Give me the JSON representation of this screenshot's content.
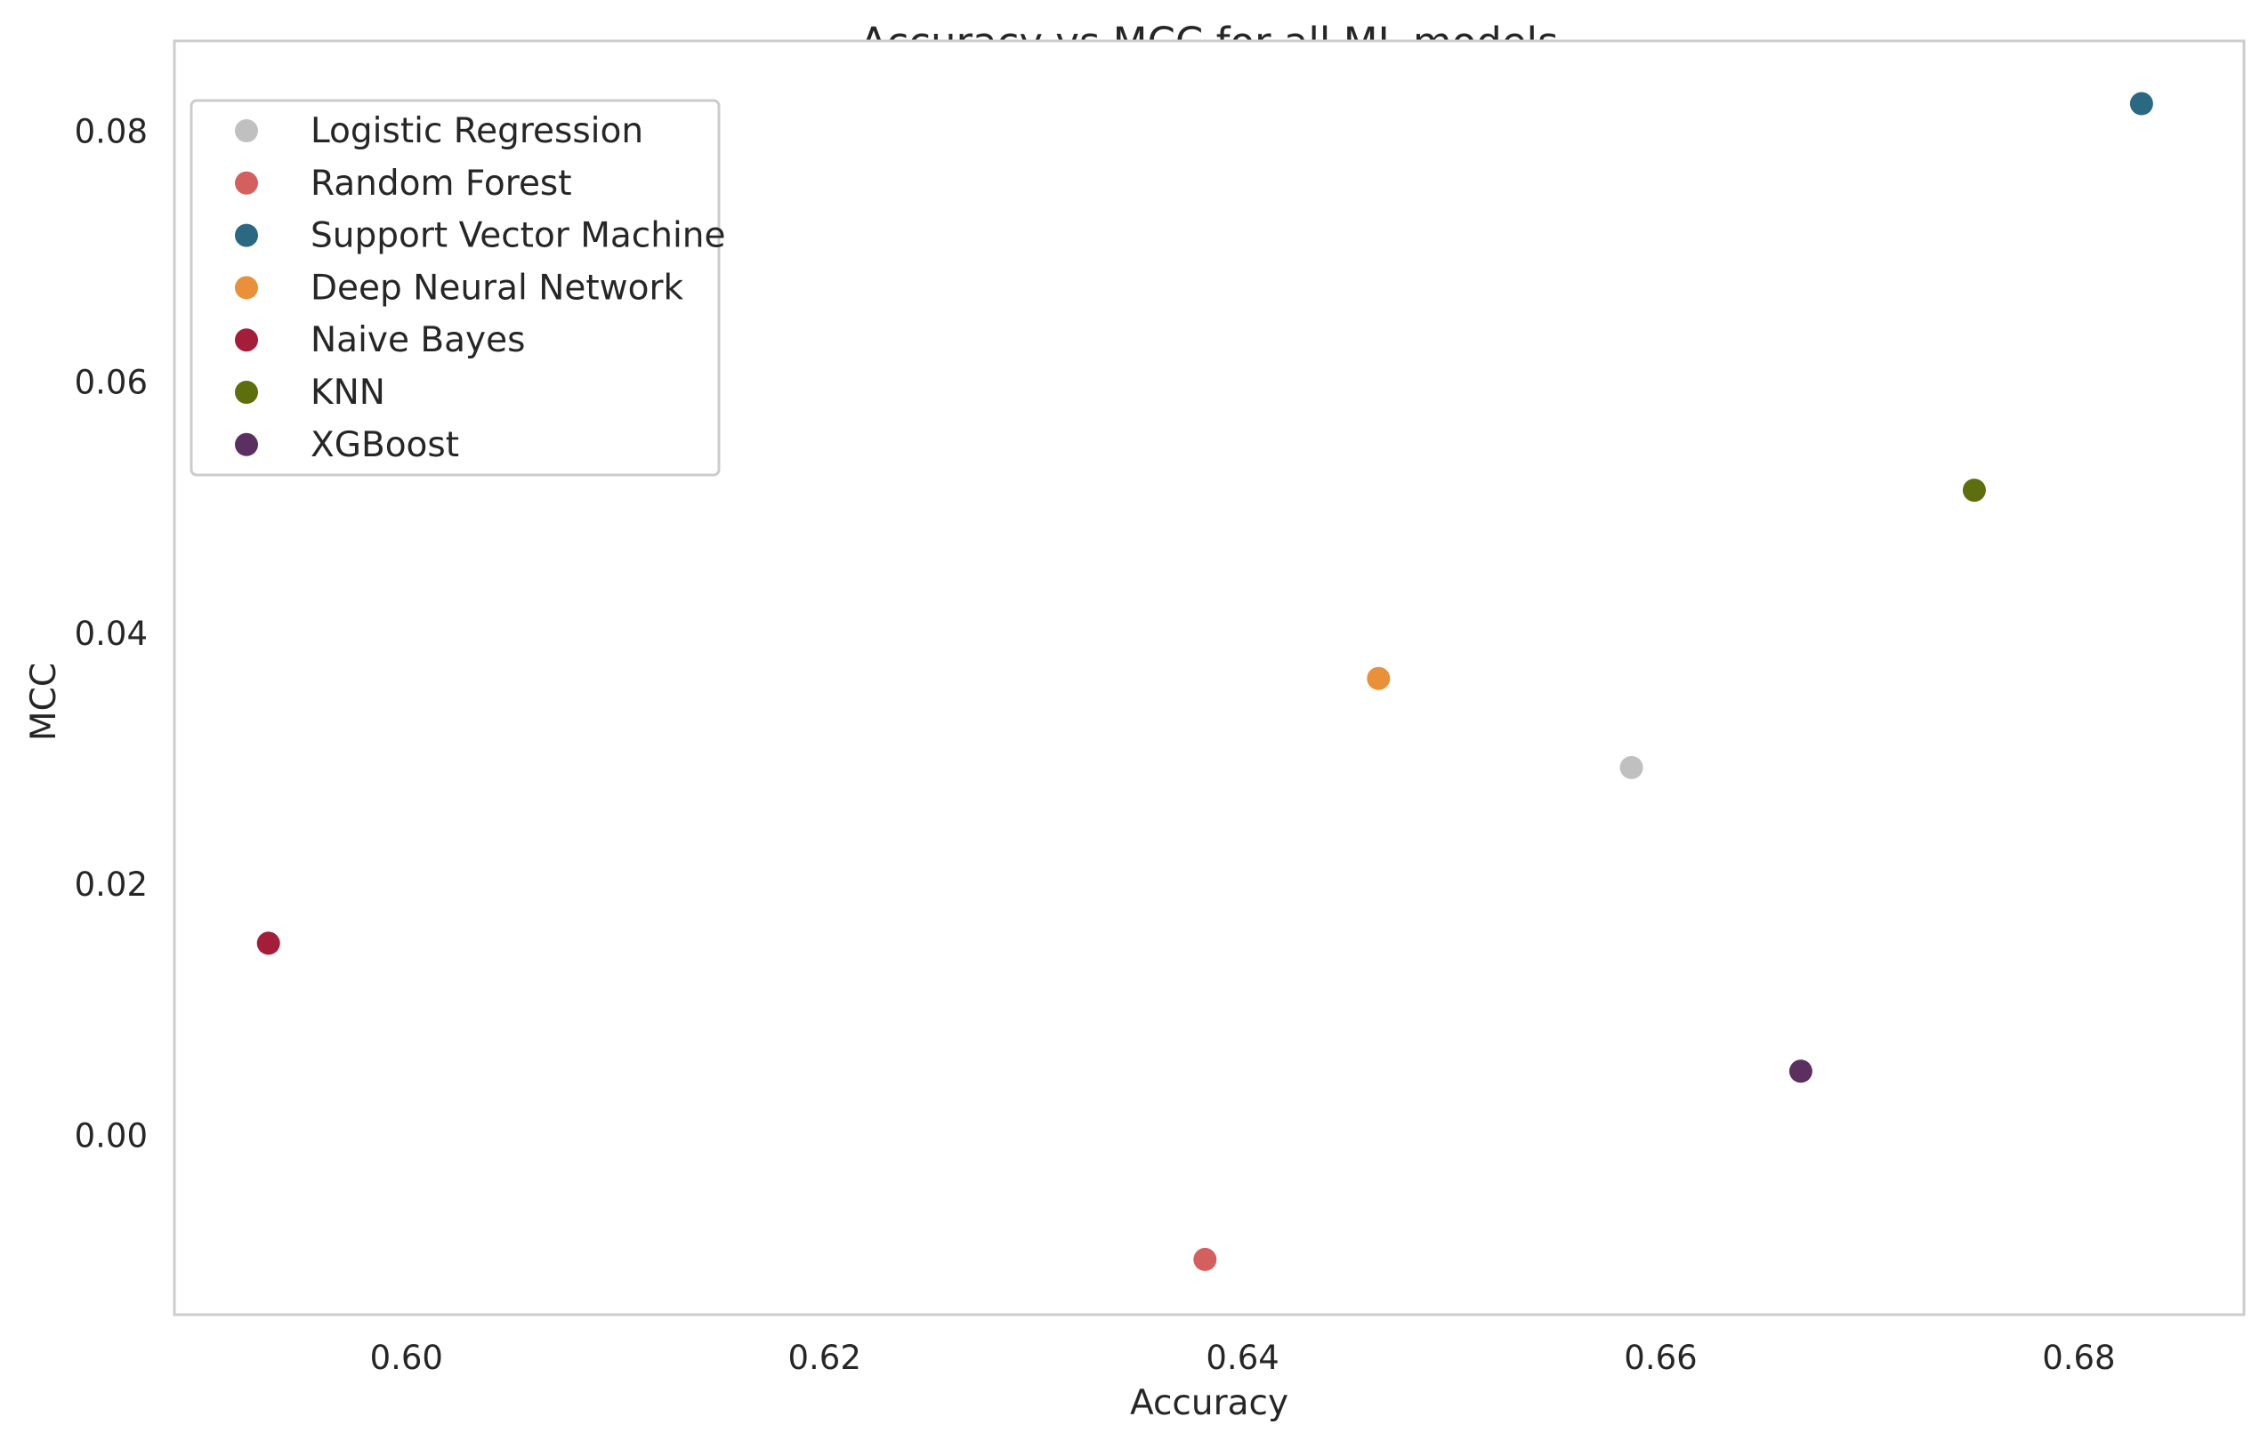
{
  "chart_data": {
    "type": "scatter",
    "title": "Accuracy vs MCC for all ML models",
    "xlabel": "Accuracy",
    "ylabel": "MCC",
    "xlim": [
      0.5889,
      0.6879
    ],
    "ylim": [
      -0.0143,
      0.0872
    ],
    "xticks": [
      0.6,
      0.62,
      0.64,
      0.66,
      0.68
    ],
    "xtick_labels": [
      "0.60",
      "0.62",
      "0.64",
      "0.66",
      "0.68"
    ],
    "yticks": [
      0.0,
      0.02,
      0.04,
      0.06,
      0.08
    ],
    "ytick_labels": [
      "0.00",
      "0.02",
      "0.04",
      "0.06",
      "0.08"
    ],
    "grid": false,
    "legend_position": "top-left",
    "series": [
      {
        "name": "Logistic Regression",
        "color": "#c0c0c0",
        "points": [
          [
            0.6586,
            0.0293
          ]
        ]
      },
      {
        "name": "Random Forest",
        "color": "#d45f5f",
        "points": [
          [
            0.6382,
            -0.0099
          ]
        ]
      },
      {
        "name": "Support Vector Machine",
        "color": "#2b6882",
        "points": [
          [
            0.683,
            0.0822
          ]
        ]
      },
      {
        "name": "Deep Neural Network",
        "color": "#e8913a",
        "points": [
          [
            0.6465,
            0.0364
          ]
        ]
      },
      {
        "name": "Naive Bayes",
        "color": "#a41e3a",
        "points": [
          [
            0.5934,
            0.0153
          ]
        ]
      },
      {
        "name": "KNN",
        "color": "#5c6e0e",
        "points": [
          [
            0.675,
            0.0514
          ]
        ]
      },
      {
        "name": "XGBoost",
        "color": "#5b3061",
        "points": [
          [
            0.6667,
            0.0051
          ]
        ]
      }
    ]
  }
}
